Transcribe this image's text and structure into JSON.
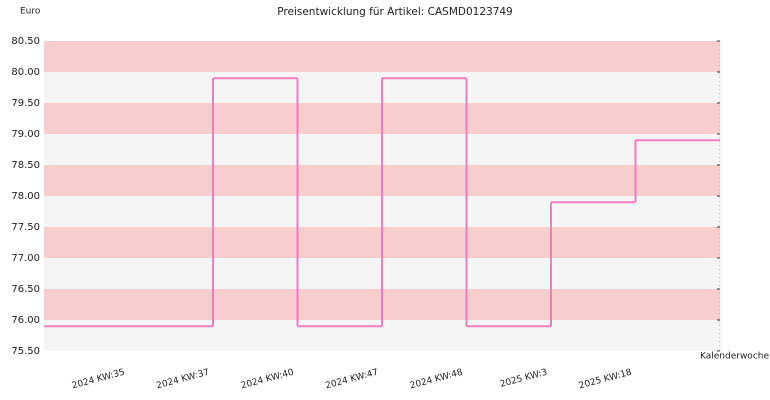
{
  "chart_data": {
    "type": "step",
    "title": "Preisentwicklung für Artikel: CASMD0123749",
    "y_label": "Euro",
    "x_label": "Kalenderwoche",
    "categories": [
      null,
      "2024 KW:35",
      "2024 KW:37",
      "2024 KW:40",
      "2024 KW:47",
      "2024 KW:48",
      "2025 KW:3",
      "2025 KW:18"
    ],
    "values": [
      75.9,
      75.9,
      79.9,
      75.9,
      79.9,
      75.9,
      77.9,
      78.9
    ],
    "color": "#f07cc4",
    "band_colors": [
      "#f5f5f5",
      "#f8cdcd"
    ],
    "ylim": [
      75.5,
      80.5
    ],
    "yticks": [
      {
        "value": 75.5,
        "label": "75.50"
      },
      {
        "value": 76,
        "label": "76.00"
      },
      {
        "value": 76.5,
        "label": "76.50"
      },
      {
        "value": 77,
        "label": "77.00"
      },
      {
        "value": 77.5,
        "label": "77.50"
      },
      {
        "value": 78,
        "label": "78.00"
      },
      {
        "value": 78.5,
        "label": "78.50"
      },
      {
        "value": 79,
        "label": "79.00"
      },
      {
        "value": 79.5,
        "label": "79.50"
      },
      {
        "value": 80,
        "label": "80.00"
      },
      {
        "value": 80.5,
        "label": "80.50"
      }
    ]
  }
}
